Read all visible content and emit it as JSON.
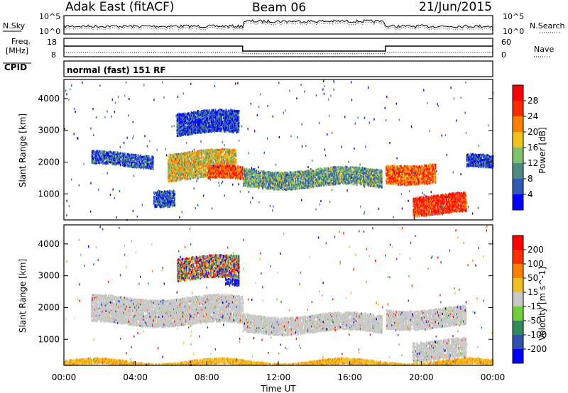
{
  "header": {
    "station": "Adak East (fitACF)",
    "beam": "Beam 06",
    "date": "21/Jun/2015"
  },
  "top_panel": {
    "left_label": "N.Sky",
    "left_ticks": [
      "10^5",
      "10^0"
    ],
    "right_ticks": [
      "10^5",
      "10^0"
    ],
    "right_label": "N.Search"
  },
  "freq_panel": {
    "left_label_line1": "Freq.",
    "left_label_line2": "[MHz]",
    "left_ticks": [
      "18",
      "8"
    ],
    "right_ticks": [
      "60",
      "0"
    ],
    "right_label": "Nave",
    "cpid_label": "CPID",
    "cpid_text": "normal (fast) 151 RF",
    "freq_mhz_segments": [
      {
        "from_h": 0,
        "to_h": 10,
        "mhz": 14.0
      },
      {
        "from_h": 10,
        "to_h": 18,
        "mhz": 10.5
      },
      {
        "from_h": 18,
        "to_h": 24,
        "mhz": 14.0
      }
    ],
    "nave_segments": [
      {
        "from_h": 0,
        "to_h": 10,
        "nave": 14
      },
      {
        "from_h": 10,
        "to_h": 18,
        "nave": 10
      },
      {
        "from_h": 18,
        "to_h": 24,
        "nave": 14
      }
    ]
  },
  "chart_data": [
    {
      "type": "heatmap",
      "name": "power",
      "ylabel": "Slant Range [km]",
      "x_range_hours": [
        0,
        24
      ],
      "ylim": [
        180,
        4600
      ],
      "yticks": [
        1000,
        2000,
        3000,
        4000
      ],
      "colorbar_label": "Power [dB]",
      "colorbar_ticks": [
        "4",
        "8",
        "12",
        "16",
        "20",
        "24",
        "28"
      ],
      "colorbar_colors": [
        "#0000ff",
        "#2d5bb5",
        "#4d8a80",
        "#7fc26d",
        "#f2c21b",
        "#ff8000",
        "#ff2a00",
        "#ff0000"
      ],
      "features": [
        {
          "h0": 5.8,
          "h1": 9.6,
          "r0": 1500,
          "r1": 2350,
          "level": 0.55
        },
        {
          "h0": 8.0,
          "h1": 10.0,
          "r0": 1450,
          "r1": 1850,
          "level": 0.8
        },
        {
          "h0": 10.0,
          "h1": 17.8,
          "r0": 1250,
          "r1": 1800,
          "level": 0.35
        },
        {
          "h0": 18.0,
          "h1": 20.8,
          "r0": 1400,
          "r1": 2000,
          "level": 0.75
        },
        {
          "h0": 19.5,
          "h1": 22.5,
          "r0": 400,
          "r1": 1000,
          "level": 0.85
        },
        {
          "h0": 6.3,
          "h1": 9.8,
          "r0": 2900,
          "r1": 3600,
          "level": 0.15
        },
        {
          "h0": 1.5,
          "h1": 5.0,
          "r0": 1900,
          "r1": 2300,
          "level": 0.2
        },
        {
          "h0": 5.0,
          "h1": 6.2,
          "r0": 700,
          "r1": 1200,
          "level": 0.2
        },
        {
          "h0": 22.5,
          "h1": 24.0,
          "r0": 1800,
          "r1": 2200,
          "level": 0.15
        }
      ]
    },
    {
      "type": "heatmap",
      "name": "velocity",
      "ylabel": "Slant Range [km]",
      "xlabel": "Time UT",
      "x_range_hours": [
        0,
        24
      ],
      "ylim": [
        180,
        4600
      ],
      "yticks": [
        1000,
        2000,
        3000,
        4000
      ],
      "xticks": [
        "00:00",
        "04:00",
        "08:00",
        "12:00",
        "16:00",
        "20:00",
        "00:00"
      ],
      "colorbar_label": "Velocity [m s^-1]",
      "colorbar_ticks": [
        "200",
        "100",
        "50",
        "15",
        "-15",
        "-50",
        "-100",
        "-200"
      ],
      "colorbar_colors": [
        "#0000ff",
        "#3050b0",
        "#2e8b57",
        "#6fd23c",
        "#c8c8c8",
        "#f0c020",
        "#ff8000",
        "#ff3000",
        "#ff0000"
      ],
      "features": [
        {
          "h0": 1.5,
          "h1": 10.0,
          "r0": 1500,
          "r1": 2350,
          "vel": "gray"
        },
        {
          "h0": 10.0,
          "h1": 17.8,
          "r0": 1250,
          "r1": 1800,
          "vel": "gray"
        },
        {
          "h0": 18.0,
          "h1": 22.5,
          "r0": 1400,
          "r1": 2000,
          "vel": "gray"
        },
        {
          "h0": 19.5,
          "h1": 22.5,
          "r0": 400,
          "r1": 1000,
          "vel": "gray"
        },
        {
          "h0": 6.3,
          "h1": 9.8,
          "r0": 2900,
          "r1": 3600,
          "vel": "mixed"
        },
        {
          "h0": 9.0,
          "h1": 9.8,
          "r0": 2650,
          "r1": 2850,
          "vel": "blue"
        },
        {
          "h0": 0.0,
          "h1": 24.0,
          "r0": 180,
          "r1": 350,
          "vel": "orange"
        }
      ]
    }
  ]
}
